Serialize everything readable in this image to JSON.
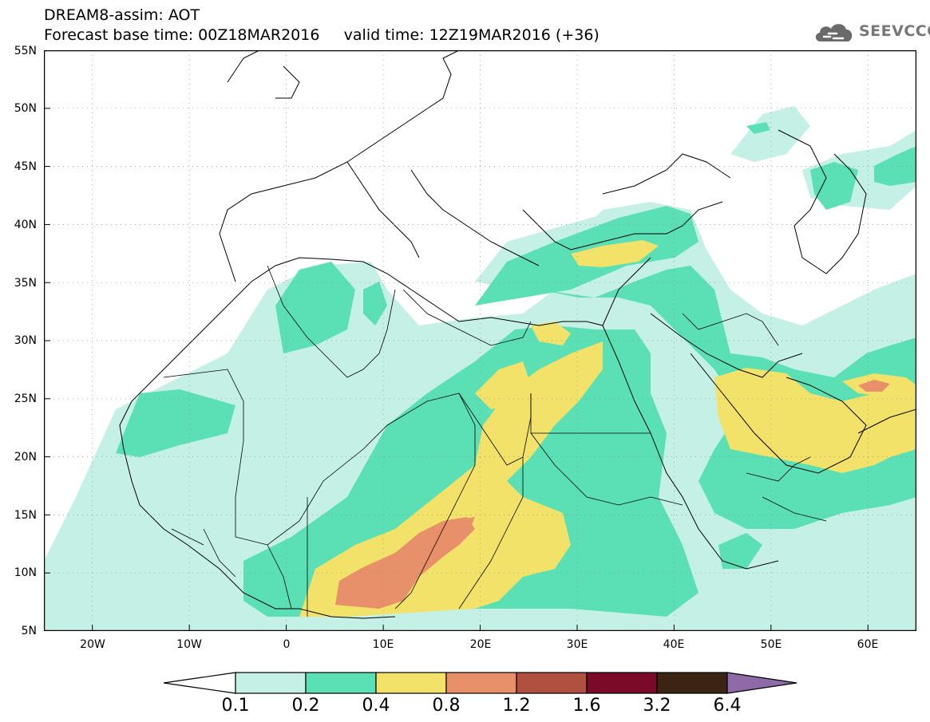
{
  "title": {
    "line1": "DREAM8-assim: AOT",
    "base_time": "Forecast base time: 00Z18MAR2016",
    "valid_time": "valid time: 12Z19MAR2016 (+36)"
  },
  "logo": {
    "text": "SEEVCCC",
    "icon": "cloud-logo-icon"
  },
  "map": {
    "lat_labels": [
      "55N",
      "50N",
      "45N",
      "40N",
      "35N",
      "30N",
      "25N",
      "20N",
      "15N",
      "10N",
      "5N"
    ],
    "lon_labels": [
      "20W",
      "10W",
      "0",
      "10E",
      "20E",
      "30E",
      "40E",
      "50E",
      "60E"
    ],
    "lat_range": [
      5,
      55
    ],
    "lon_range": [
      -25,
      65
    ]
  },
  "colorbar": {
    "labels": [
      "0.1",
      "0.2",
      "0.4",
      "0.8",
      "1.2",
      "1.6",
      "3.2",
      "6.4"
    ],
    "colors": [
      "#ffffff",
      "#c5f0e6",
      "#5ae0b4",
      "#f2e26a",
      "#e8906a",
      "#b05040",
      "#7a0a28",
      "#3c2414",
      "#8e6aa8"
    ]
  }
}
